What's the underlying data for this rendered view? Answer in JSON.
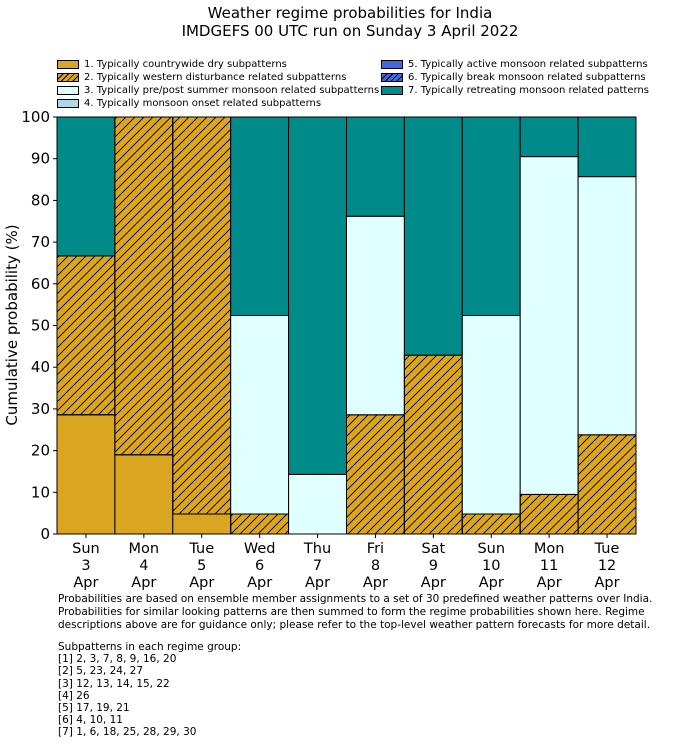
{
  "chart_data": {
    "type": "bar",
    "stacked": true,
    "title": "Weather regime probabilities for India",
    "subtitle": "IMDGEFS 00 UTC run on Sunday 3 April 2022",
    "xlabel": "",
    "ylabel": "Cumulative probability (%)",
    "ylim": [
      0,
      100
    ],
    "yticks": [
      0,
      10,
      20,
      30,
      40,
      50,
      60,
      70,
      80,
      90,
      100
    ],
    "grid": false,
    "legend_position": "top",
    "categories": [
      [
        "Sun",
        "3",
        "Apr"
      ],
      [
        "Mon",
        "4",
        "Apr"
      ],
      [
        "Tue",
        "5",
        "Apr"
      ],
      [
        "Wed",
        "6",
        "Apr"
      ],
      [
        "Thu",
        "7",
        "Apr"
      ],
      [
        "Fri",
        "8",
        "Apr"
      ],
      [
        "Sat",
        "9",
        "Apr"
      ],
      [
        "Sun",
        "10",
        "Apr"
      ],
      [
        "Mon",
        "11",
        "Apr"
      ],
      [
        "Tue",
        "12",
        "Apr"
      ]
    ],
    "series": [
      {
        "name": "1. Typically countrywide dry subpatterns",
        "color": "#daa520",
        "hatch": false,
        "values": [
          28.6,
          19.0,
          4.8,
          0,
          0,
          0,
          0,
          0,
          0,
          0
        ]
      },
      {
        "name": "2. Typically western disturbance related subpatterns",
        "color": "#daa520",
        "hatch": true,
        "values": [
          38.1,
          81.0,
          95.2,
          4.8,
          0,
          28.6,
          42.9,
          4.8,
          9.5,
          23.8
        ]
      },
      {
        "name": "3. Typically pre/post summer monsoon related subpatterns",
        "color": "#e0ffff",
        "hatch": false,
        "values": [
          0,
          0,
          0,
          47.6,
          14.3,
          47.6,
          0,
          47.6,
          81.0,
          61.9
        ]
      },
      {
        "name": "4. Typically monsoon onset related subpatterns",
        "color": "#add8e6",
        "hatch": false,
        "values": [
          0,
          0,
          0,
          0,
          0,
          0,
          0,
          0,
          0,
          0
        ]
      },
      {
        "name": "5. Typically active monsoon related subpatterns",
        "color": "#4169e1",
        "hatch": false,
        "values": [
          0,
          0,
          0,
          0,
          0,
          0,
          0,
          0,
          0,
          0
        ]
      },
      {
        "name": "6. Typically break monsoon related subpatterns",
        "color": "#4169e1",
        "hatch": true,
        "values": [
          0,
          0,
          0,
          0,
          0,
          0,
          0,
          0,
          0,
          0
        ]
      },
      {
        "name": "7. Typically retreating monsoon related patterns",
        "color": "#008b8b",
        "hatch": false,
        "values": [
          33.3,
          0,
          0,
          47.6,
          85.7,
          23.8,
          57.1,
          47.6,
          9.5,
          14.3
        ]
      }
    ]
  },
  "notes": [
    "Probabilities are based on ensemble member assignments to a set of 30 predefined weather patterns over India.",
    "Probabilities for similar looking patterns are then summed to form the regime probabilities shown here. Regime",
    "descriptions above are for guidance only; please refer to the top-level weather pattern forecasts for more detail."
  ],
  "subpatterns": {
    "heading": "Subpatterns in each regime group:",
    "groups": [
      "[1] 2, 3, 7, 8, 9, 16, 20",
      "[2] 5, 23, 24, 27",
      "[3] 12, 13, 14, 15, 22",
      "[4] 26",
      "[5] 17, 19, 21",
      "[6] 4, 10, 11",
      "[7] 1, 6, 18, 25, 28, 29, 30"
    ]
  }
}
